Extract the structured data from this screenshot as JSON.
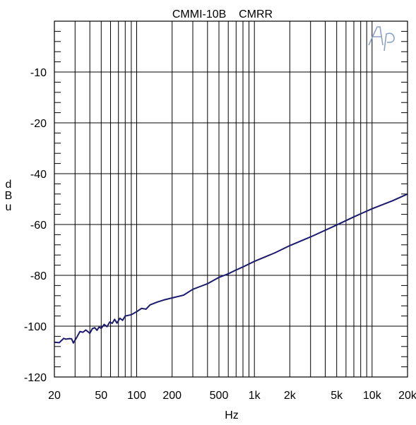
{
  "chart_data": {
    "type": "line",
    "title": "CMMI-10B    CMRR",
    "xlabel": "Hz",
    "ylabel": "dBu",
    "x_scale": "log",
    "xlim": [
      20,
      20000
    ],
    "x_ticks": [
      {
        "value": 20,
        "label": "20"
      },
      {
        "value": 50,
        "label": "50"
      },
      {
        "value": 100,
        "label": "100"
      },
      {
        "value": 200,
        "label": "200"
      },
      {
        "value": 500,
        "label": "500"
      },
      {
        "value": 1000,
        "label": "1k"
      },
      {
        "value": 2000,
        "label": "2k"
      },
      {
        "value": 5000,
        "label": "5k"
      },
      {
        "value": 10000,
        "label": "10k"
      },
      {
        "value": 20000,
        "label": "20k"
      }
    ],
    "y_ticks": [
      {
        "label": "-10"
      },
      {
        "label": "-20"
      },
      {
        "label": "-40"
      },
      {
        "label": "-60"
      },
      {
        "label": "-80"
      },
      {
        "label": "-100"
      },
      {
        "label": "-120"
      }
    ],
    "grid": true,
    "series_color": "#1c1a6e",
    "series": [
      {
        "x": [
          20,
          22,
          24,
          25,
          27,
          28,
          29,
          31,
          33,
          35,
          37,
          40,
          42,
          44,
          46,
          48,
          50,
          53,
          56,
          59,
          62,
          65,
          68,
          72,
          76,
          80,
          90,
          100,
          110,
          120,
          130,
          150,
          170,
          200,
          250,
          300,
          350,
          400,
          500,
          600,
          700,
          800,
          1000,
          1500,
          2000,
          3000,
          5000,
          7000,
          10000,
          15000,
          20000
        ],
        "y": [
          -106.3,
          -106.5,
          -104.8,
          -105.1,
          -104.9,
          -105.0,
          -106.6,
          -104.4,
          -102.1,
          -102.4,
          -101.5,
          -102.8,
          -101.0,
          -100.6,
          -101.6,
          -100.3,
          -100.9,
          -99.3,
          -100.2,
          -98.4,
          -98.9,
          -97.3,
          -98.8,
          -96.9,
          -97.7,
          -96.0,
          -95.5,
          -94.3,
          -93.0,
          -93.3,
          -91.6,
          -90.5,
          -89.7,
          -88.9,
          -87.8,
          -85.5,
          -84.3,
          -83.3,
          -80.8,
          -79.4,
          -77.9,
          -76.7,
          -74.5,
          -71.1,
          -68.3,
          -64.9,
          -60.2,
          -57.0,
          -53.8,
          -50.6,
          -48.0
        ]
      }
    ]
  },
  "logo_text": "Ap"
}
